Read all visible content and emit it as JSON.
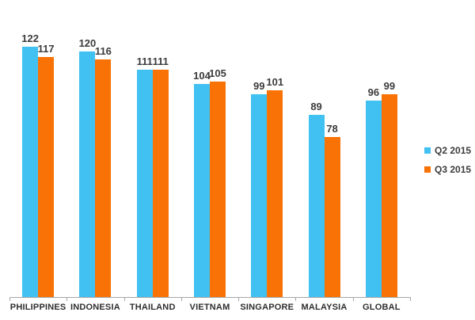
{
  "chart_data": {
    "type": "bar",
    "title": "",
    "categories": [
      "PHILIPPINES",
      "INDONESIA",
      "THAILAND",
      "VIETNAM",
      "SINGAPORE",
      "MALAYSIA",
      "GLOBAL"
    ],
    "series": [
      {
        "name": "Q2 2015",
        "color": "#41C1F1",
        "values": [
          122,
          120,
          111,
          104,
          99,
          89,
          96
        ]
      },
      {
        "name": "Q3 2015",
        "color": "#F97205",
        "values": [
          117,
          116,
          111,
          105,
          101,
          78,
          99
        ]
      }
    ],
    "data_labels": true,
    "grid": false,
    "legend_position": "right",
    "xlabel": "",
    "ylabel": "",
    "ylim": [
      0,
      145
    ],
    "axis_color": "#A6A6A6",
    "label_color": "#3B3B3B"
  }
}
